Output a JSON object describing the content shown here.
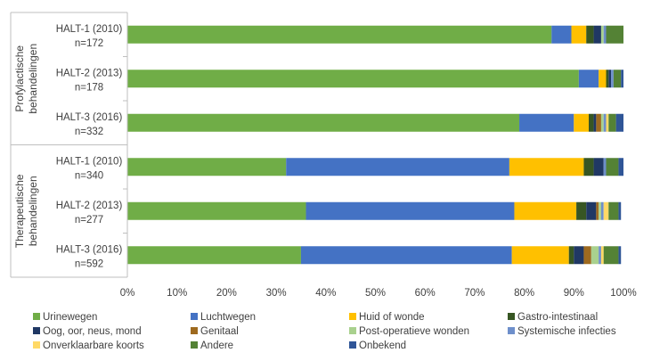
{
  "chart_data": {
    "type": "bar",
    "orientation": "horizontal",
    "stacked": "percent",
    "title": "",
    "xlabel": "",
    "ylabel": "",
    "xlim": [
      0,
      100
    ],
    "x_ticks": [
      "0%",
      "10%",
      "20%",
      "30%",
      "40%",
      "50%",
      "60%",
      "70%",
      "80%",
      "90%",
      "100%"
    ],
    "grid": false,
    "legend_position": "bottom",
    "groups": [
      {
        "label": "Profylactische behandelingen",
        "lines": [
          "Profylactische",
          "behandelingen"
        ],
        "categories": [
          0,
          1,
          2
        ]
      },
      {
        "label": "Therapeutische behandelingen",
        "lines": [
          "Therapeutische",
          "behandelingen"
        ],
        "categories": [
          3,
          4,
          5
        ]
      }
    ],
    "categories": [
      {
        "name": "HALT-1 (2010)",
        "n": "n=172"
      },
      {
        "name": "HALT-2 (2013)",
        "n": "n=178"
      },
      {
        "name": "HALT-3 (2016)",
        "n": "n=332"
      },
      {
        "name": "HALT-1 (2010)",
        "n": "n=340"
      },
      {
        "name": "HALT-2 (2013)",
        "n": "n=277"
      },
      {
        "name": "HALT-3 (2016)",
        "n": "n=592"
      }
    ],
    "series": [
      {
        "name": "Urinewegen",
        "color": "#70AD47",
        "values": [
          85.5,
          91.0,
          79.0,
          32.0,
          36.0,
          35.0
        ]
      },
      {
        "name": "Luchtwegen",
        "color": "#4472C4",
        "values": [
          4.0,
          4.0,
          11.0,
          45.0,
          42.0,
          42.5
        ]
      },
      {
        "name": "Huid of wonde",
        "color": "#FFC000",
        "values": [
          3.0,
          1.5,
          3.0,
          15.0,
          12.5,
          11.5
        ]
      },
      {
        "name": "Gastro-intestinaal",
        "color": "#375623",
        "values": [
          1.5,
          0.5,
          1.0,
          2.0,
          2.0,
          1.0
        ]
      },
      {
        "name": "Oog, oor, neus, mond",
        "color": "#203864",
        "values": [
          1.5,
          0.5,
          0.5,
          2.0,
          2.0,
          2.0
        ]
      },
      {
        "name": "Genitaal",
        "color": "#9E6A1F",
        "values": [
          0.0,
          0.0,
          1.0,
          0.0,
          0.5,
          1.5
        ]
      },
      {
        "name": "Post-operatieve wonden",
        "color": "#A9D18E",
        "values": [
          0.5,
          0.0,
          0.5,
          0.0,
          0.5,
          1.5
        ]
      },
      {
        "name": "Systemische infecties",
        "color": "#6E8FCB",
        "values": [
          0.5,
          0.5,
          0.5,
          0.5,
          0.5,
          0.5
        ]
      },
      {
        "name": "Onverklaarbare koorts",
        "color": "#FFD966",
        "values": [
          0.0,
          0.0,
          0.5,
          0.0,
          1.0,
          0.5
        ]
      },
      {
        "name": "Andere",
        "color": "#548235",
        "values": [
          3.5,
          1.5,
          1.5,
          2.5,
          2.0,
          3.0
        ]
      },
      {
        "name": "Onbekend",
        "color": "#2F5597",
        "values": [
          0.5,
          0.5,
          1.5,
          1.0,
          0.5,
          0.5
        ]
      }
    ]
  }
}
